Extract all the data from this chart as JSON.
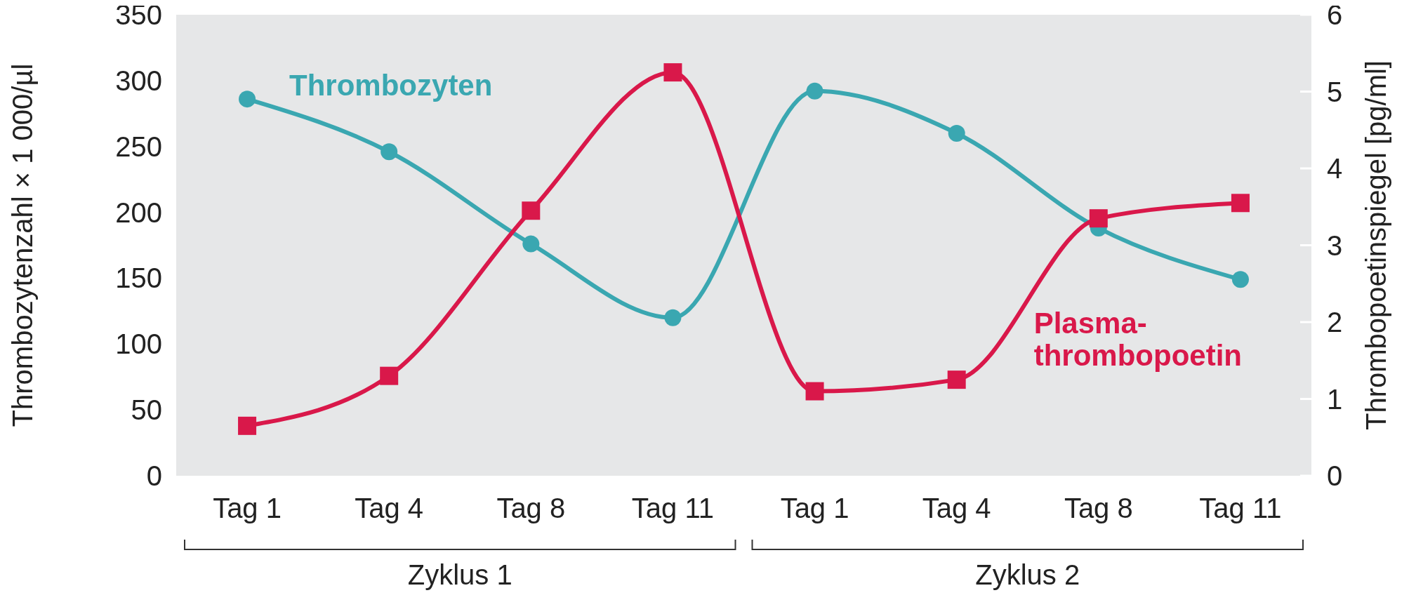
{
  "chart_data": {
    "type": "line",
    "categories": [
      "Tag 1",
      "Tag 4",
      "Tag 8",
      "Tag 11",
      "Tag 1",
      "Tag 4",
      "Tag 8",
      "Tag 11"
    ],
    "ylabel": "Thrombozytenzahl × 1 000/µl",
    "y2label": "Thrombopoetinspiegel [pg/ml]",
    "ylim": [
      0,
      350
    ],
    "yticks": [
      0,
      50,
      100,
      150,
      200,
      250,
      300,
      350
    ],
    "y2lim": [
      0,
      6
    ],
    "y2ticks": [
      0,
      1,
      2,
      3,
      4,
      5,
      6
    ],
    "series": [
      {
        "name": "Thrombozyten",
        "color": "#3aa7b1",
        "marker": "circle",
        "values": [
          286,
          246,
          176,
          120,
          292,
          260,
          188,
          149
        ]
      },
      {
        "name": "Plasma-thrombopoetin",
        "color": "#d9184a",
        "marker": "square",
        "axis": "y2",
        "values": [
          0.65,
          1.3,
          3.45,
          5.25,
          1.1,
          1.25,
          3.35,
          3.55
        ]
      }
    ],
    "annotations": [
      "Zyklus 1",
      "Zyklus 2"
    ],
    "grid": false
  }
}
